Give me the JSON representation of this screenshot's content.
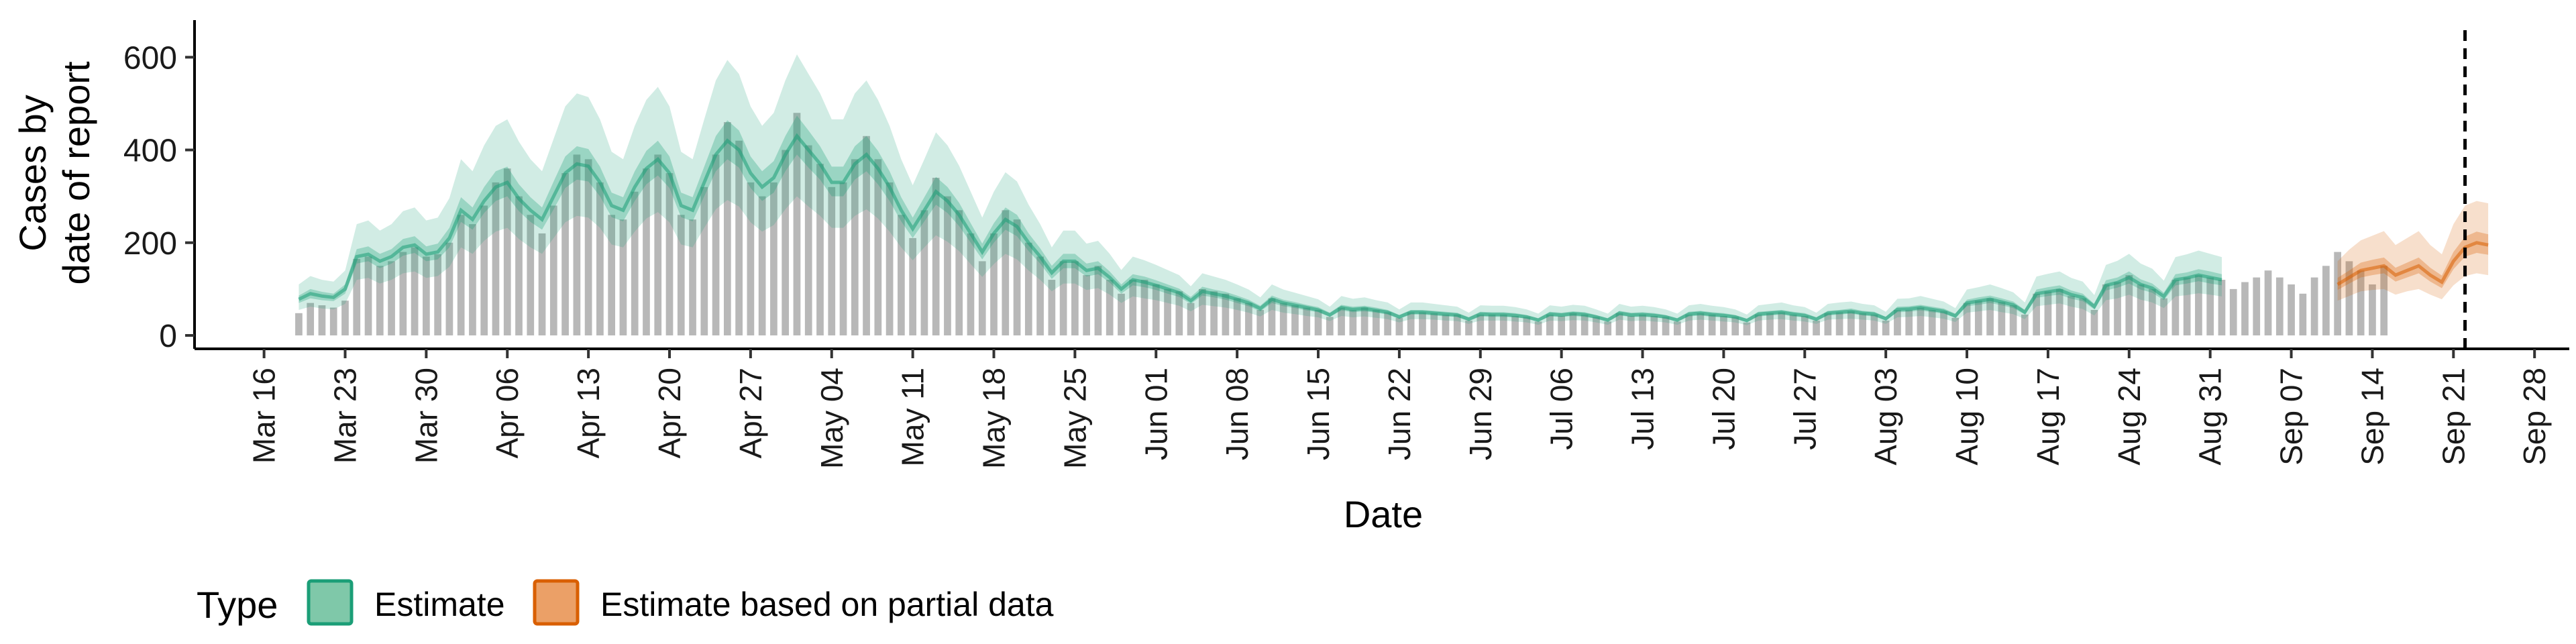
{
  "chart_data": {
    "type": "area",
    "xlabel": "Date",
    "ylabel": [
      "Cases by",
      "date of report"
    ],
    "ylim": [
      0,
      680
    ],
    "y_ticks": [
      0,
      200,
      400,
      600
    ],
    "x_range": [
      "2020-03-10",
      "2020-10-01"
    ],
    "x_ticks": [
      {
        "date": "2020-03-16",
        "label": "Mar 16"
      },
      {
        "date": "2020-03-23",
        "label": "Mar 23"
      },
      {
        "date": "2020-03-30",
        "label": "Mar 30"
      },
      {
        "date": "2020-04-06",
        "label": "Apr 06"
      },
      {
        "date": "2020-04-13",
        "label": "Apr 13"
      },
      {
        "date": "2020-04-20",
        "label": "Apr 20"
      },
      {
        "date": "2020-04-27",
        "label": "Apr 27"
      },
      {
        "date": "2020-05-04",
        "label": "May 04"
      },
      {
        "date": "2020-05-11",
        "label": "May 11"
      },
      {
        "date": "2020-05-18",
        "label": "May 18"
      },
      {
        "date": "2020-05-25",
        "label": "May 25"
      },
      {
        "date": "2020-06-01",
        "label": "Jun 01"
      },
      {
        "date": "2020-06-08",
        "label": "Jun 08"
      },
      {
        "date": "2020-06-15",
        "label": "Jun 15"
      },
      {
        "date": "2020-06-22",
        "label": "Jun 22"
      },
      {
        "date": "2020-06-29",
        "label": "Jun 29"
      },
      {
        "date": "2020-07-06",
        "label": "Jul 06"
      },
      {
        "date": "2020-07-13",
        "label": "Jul 13"
      },
      {
        "date": "2020-07-20",
        "label": "Jul 20"
      },
      {
        "date": "2020-07-27",
        "label": "Jul 27"
      },
      {
        "date": "2020-08-03",
        "label": "Aug 03"
      },
      {
        "date": "2020-08-10",
        "label": "Aug 10"
      },
      {
        "date": "2020-08-17",
        "label": "Aug 17"
      },
      {
        "date": "2020-08-24",
        "label": "Aug 24"
      },
      {
        "date": "2020-08-31",
        "label": "Aug 31"
      },
      {
        "date": "2020-09-07",
        "label": "Sep 07"
      },
      {
        "date": "2020-09-14",
        "label": "Sep 14"
      },
      {
        "date": "2020-09-21",
        "label": "Sep 21"
      },
      {
        "date": "2020-09-28",
        "label": "Sep 28"
      }
    ],
    "vline_date": "2020-09-22",
    "legend": {
      "title": "Type",
      "position": "bottom-left",
      "items": [
        {
          "label": "Estimate",
          "fill": "#7fc8a9",
          "stroke": "#1b9e77"
        },
        {
          "label": "Estimate based on partial data",
          "fill": "#eba067",
          "stroke": "#d95f02"
        }
      ]
    },
    "colors": {
      "estimate": "#1b9e77",
      "partial": "#d95f02",
      "bars": "#b8b8b8",
      "axis": "#000000"
    },
    "bars": {
      "start_date": "2020-03-19",
      "values": [
        48,
        70,
        65,
        60,
        75,
        165,
        170,
        150,
        160,
        180,
        190,
        170,
        175,
        200,
        260,
        240,
        280,
        330,
        360,
        300,
        260,
        220,
        280,
        350,
        390,
        380,
        330,
        260,
        250,
        310,
        360,
        390,
        350,
        260,
        250,
        320,
        390,
        460,
        420,
        330,
        300,
        330,
        400,
        480,
        410,
        370,
        320,
        330,
        380,
        430,
        380,
        330,
        260,
        210,
        270,
        340,
        300,
        270,
        220,
        160,
        220,
        270,
        250,
        200,
        170,
        120,
        160,
        160,
        130,
        150,
        120,
        90,
        120,
        120,
        110,
        100,
        95,
        70,
        100,
        95,
        90,
        80,
        70,
        55,
        80,
        70,
        65,
        60,
        55,
        40,
        60,
        55,
        60,
        55,
        50,
        38,
        50,
        50,
        48,
        45,
        45,
        32,
        45,
        45,
        45,
        42,
        40,
        30,
        45,
        42,
        48,
        45,
        40,
        30,
        48,
        42,
        45,
        42,
        40,
        30,
        45,
        48,
        45,
        42,
        40,
        28,
        45,
        48,
        50,
        45,
        42,
        32,
        48,
        50,
        52,
        48,
        45,
        32,
        55,
        55,
        60,
        55,
        52,
        38,
        70,
        75,
        80,
        72,
        65,
        45,
        90,
        95,
        100,
        85,
        80,
        55,
        110,
        115,
        130,
        110,
        100,
        80,
        120,
        125,
        130,
        125,
        120,
        100,
        115,
        125,
        140,
        125,
        110,
        90,
        125,
        150,
        180,
        160,
        140,
        110,
        150
      ]
    },
    "estimate": {
      "start_date": "2020-03-19",
      "median": [
        78,
        90,
        85,
        82,
        100,
        170,
        175,
        160,
        170,
        190,
        195,
        175,
        180,
        210,
        270,
        250,
        290,
        320,
        330,
        295,
        270,
        250,
        300,
        350,
        370,
        365,
        330,
        280,
        270,
        320,
        360,
        380,
        350,
        280,
        270,
        330,
        390,
        420,
        400,
        350,
        320,
        340,
        390,
        430,
        400,
        370,
        330,
        330,
        370,
        390,
        360,
        320,
        270,
        230,
        270,
        310,
        290,
        260,
        220,
        180,
        220,
        250,
        235,
        200,
        170,
        135,
        160,
        160,
        140,
        145,
        125,
        100,
        120,
        115,
        108,
        100,
        92,
        75,
        95,
        90,
        85,
        78,
        70,
        58,
        78,
        70,
        65,
        60,
        55,
        44,
        60,
        56,
        58,
        54,
        50,
        40,
        50,
        50,
        48,
        46,
        44,
        35,
        46,
        45,
        45,
        43,
        40,
        33,
        46,
        44,
        47,
        45,
        40,
        33,
        48,
        44,
        45,
        43,
        40,
        33,
        46,
        48,
        45,
        43,
        40,
        32,
        46,
        48,
        50,
        46,
        43,
        35,
        48,
        50,
        52,
        48,
        46,
        36,
        56,
        57,
        60,
        56,
        52,
        42,
        70,
        74,
        78,
        72,
        66,
        50,
        90,
        94,
        98,
        88,
        82,
        62,
        108,
        114,
        125,
        110,
        102,
        84,
        120,
        124,
        130,
        125,
        120
      ],
      "lower50": [
        70,
        80,
        76,
        74,
        90,
        155,
        160,
        145,
        155,
        172,
        178,
        160,
        164,
        190,
        245,
        228,
        264,
        290,
        300,
        268,
        245,
        228,
        272,
        318,
        336,
        332,
        300,
        255,
        246,
        290,
        326,
        345,
        318,
        255,
        246,
        300,
        354,
        380,
        362,
        318,
        290,
        308,
        354,
        390,
        362,
        336,
        300,
        300,
        336,
        354,
        326,
        290,
        246,
        210,
        246,
        282,
        264,
        236,
        200,
        164,
        200,
        228,
        214,
        182,
        155,
        122,
        145,
        145,
        127,
        132,
        114,
        90,
        108,
        104,
        98,
        90,
        83,
        68,
        86,
        82,
        77,
        70,
        63,
        52,
        70,
        63,
        59,
        54,
        50,
        40,
        54,
        50,
        52,
        49,
        45,
        36,
        45,
        45,
        43,
        41,
        40,
        31,
        41,
        40,
        40,
        39,
        36,
        30,
        41,
        40,
        42,
        40,
        36,
        30,
        43,
        40,
        40,
        39,
        36,
        30,
        41,
        43,
        40,
        39,
        36,
        29,
        41,
        43,
        45,
        41,
        39,
        31,
        43,
        45,
        47,
        43,
        41,
        32,
        50,
        51,
        54,
        50,
        47,
        38,
        63,
        66,
        70,
        65,
        59,
        45,
        81,
        85,
        88,
        79,
        74,
        56,
        97,
        103,
        112,
        99,
        92,
        76,
        108,
        112,
        117,
        112,
        108
      ],
      "upper50": [
        86,
        100,
        94,
        90,
        110,
        186,
        192,
        176,
        186,
        208,
        214,
        192,
        198,
        232,
        298,
        276,
        320,
        354,
        364,
        326,
        298,
        276,
        332,
        386,
        408,
        402,
        364,
        308,
        298,
        354,
        398,
        420,
        386,
        308,
        298,
        364,
        430,
        464,
        442,
        386,
        354,
        376,
        430,
        474,
        442,
        408,
        364,
        364,
        408,
        430,
        398,
        354,
        298,
        254,
        298,
        342,
        320,
        286,
        242,
        198,
        242,
        276,
        260,
        220,
        188,
        150,
        176,
        176,
        155,
        160,
        138,
        110,
        132,
        127,
        119,
        110,
        101,
        83,
        105,
        99,
        94,
        86,
        77,
        64,
        86,
        77,
        72,
        66,
        61,
        49,
        66,
        62,
        64,
        60,
        55,
        44,
        55,
        55,
        53,
        51,
        49,
        39,
        51,
        50,
        50,
        48,
        44,
        37,
        51,
        49,
        52,
        50,
        44,
        37,
        53,
        49,
        50,
        48,
        44,
        37,
        51,
        53,
        50,
        48,
        44,
        36,
        51,
        53,
        55,
        51,
        48,
        39,
        53,
        55,
        58,
        53,
        51,
        40,
        62,
        63,
        66,
        62,
        58,
        47,
        77,
        82,
        86,
        80,
        73,
        55,
        99,
        104,
        108,
        97,
        90,
        68,
        119,
        125,
        138,
        121,
        112,
        92,
        132,
        136,
        143,
        138,
        132
      ],
      "lower90": [
        55,
        62,
        58,
        56,
        68,
        120,
        124,
        112,
        120,
        134,
        138,
        124,
        128,
        148,
        190,
        176,
        204,
        224,
        232,
        208,
        190,
        176,
        210,
        244,
        258,
        254,
        232,
        196,
        190,
        224,
        252,
        266,
        244,
        196,
        190,
        232,
        272,
        292,
        278,
        244,
        224,
        238,
        272,
        300,
        278,
        258,
        232,
        232,
        258,
        272,
        252,
        224,
        190,
        162,
        190,
        216,
        202,
        182,
        154,
        126,
        154,
        176,
        164,
        140,
        120,
        95,
        112,
        112,
        98,
        102,
        88,
        70,
        84,
        80,
        76,
        70,
        64,
        52,
        66,
        63,
        60,
        55,
        49,
        41,
        55,
        49,
        46,
        42,
        39,
        31,
        42,
        39,
        41,
        38,
        35,
        28,
        35,
        35,
        34,
        32,
        31,
        25,
        32,
        32,
        32,
        30,
        28,
        23,
        32,
        31,
        33,
        32,
        28,
        23,
        34,
        31,
        32,
        30,
        28,
        23,
        32,
        34,
        32,
        30,
        28,
        22,
        32,
        34,
        35,
        32,
        30,
        25,
        34,
        35,
        36,
        34,
        32,
        25,
        39,
        40,
        42,
        39,
        36,
        29,
        49,
        52,
        55,
        50,
        46,
        35,
        63,
        66,
        69,
        62,
        57,
        43,
        76,
        80,
        88,
        77,
        71,
        59,
        84,
        87,
        91,
        88,
        84
      ],
      "upper90": [
        110,
        128,
        120,
        116,
        140,
        240,
        248,
        226,
        240,
        268,
        276,
        248,
        254,
        296,
        380,
        354,
        410,
        452,
        466,
        418,
        380,
        354,
        424,
        494,
        522,
        514,
        466,
        396,
        380,
        452,
        508,
        536,
        494,
        396,
        380,
        466,
        550,
        594,
        564,
        494,
        452,
        480,
        550,
        606,
        564,
        522,
        466,
        466,
        522,
        550,
        508,
        452,
        380,
        324,
        380,
        438,
        410,
        366,
        310,
        254,
        310,
        352,
        332,
        282,
        240,
        190,
        226,
        226,
        198,
        204,
        176,
        141,
        170,
        162,
        152,
        141,
        130,
        106,
        134,
        127,
        120,
        110,
        99,
        82,
        110,
        99,
        92,
        85,
        78,
        62,
        85,
        79,
        82,
        76,
        71,
        56,
        71,
        71,
        68,
        65,
        62,
        49,
        65,
        64,
        64,
        61,
        56,
        47,
        65,
        62,
        66,
        64,
        56,
        47,
        68,
        62,
        64,
        61,
        56,
        47,
        65,
        68,
        64,
        61,
        56,
        45,
        65,
        68,
        71,
        65,
        61,
        49,
        68,
        71,
        73,
        68,
        65,
        51,
        79,
        80,
        85,
        79,
        73,
        59,
        99,
        104,
        110,
        102,
        93,
        71,
        127,
        133,
        138,
        124,
        116,
        87,
        152,
        161,
        176,
        155,
        144,
        118,
        169,
        175,
        183,
        176,
        169
      ]
    },
    "partial": {
      "start_date": "2020-09-11",
      "median": [
        110,
        125,
        140,
        145,
        150,
        130,
        140,
        150,
        130,
        115,
        160,
        190,
        200,
        195
      ],
      "lower50": [
        98,
        112,
        125,
        130,
        134,
        116,
        125,
        134,
        116,
        102,
        143,
        170,
        178,
        174
      ],
      "upper50": [
        124,
        140,
        157,
        163,
        168,
        146,
        157,
        168,
        146,
        129,
        180,
        213,
        224,
        218
      ],
      "lower90": [
        75,
        85,
        95,
        98,
        100,
        88,
        95,
        100,
        88,
        78,
        108,
        128,
        134,
        130
      ],
      "upper90": [
        160,
        185,
        205,
        215,
        225,
        195,
        210,
        225,
        195,
        175,
        240,
        280,
        290,
        285
      ]
    }
  }
}
